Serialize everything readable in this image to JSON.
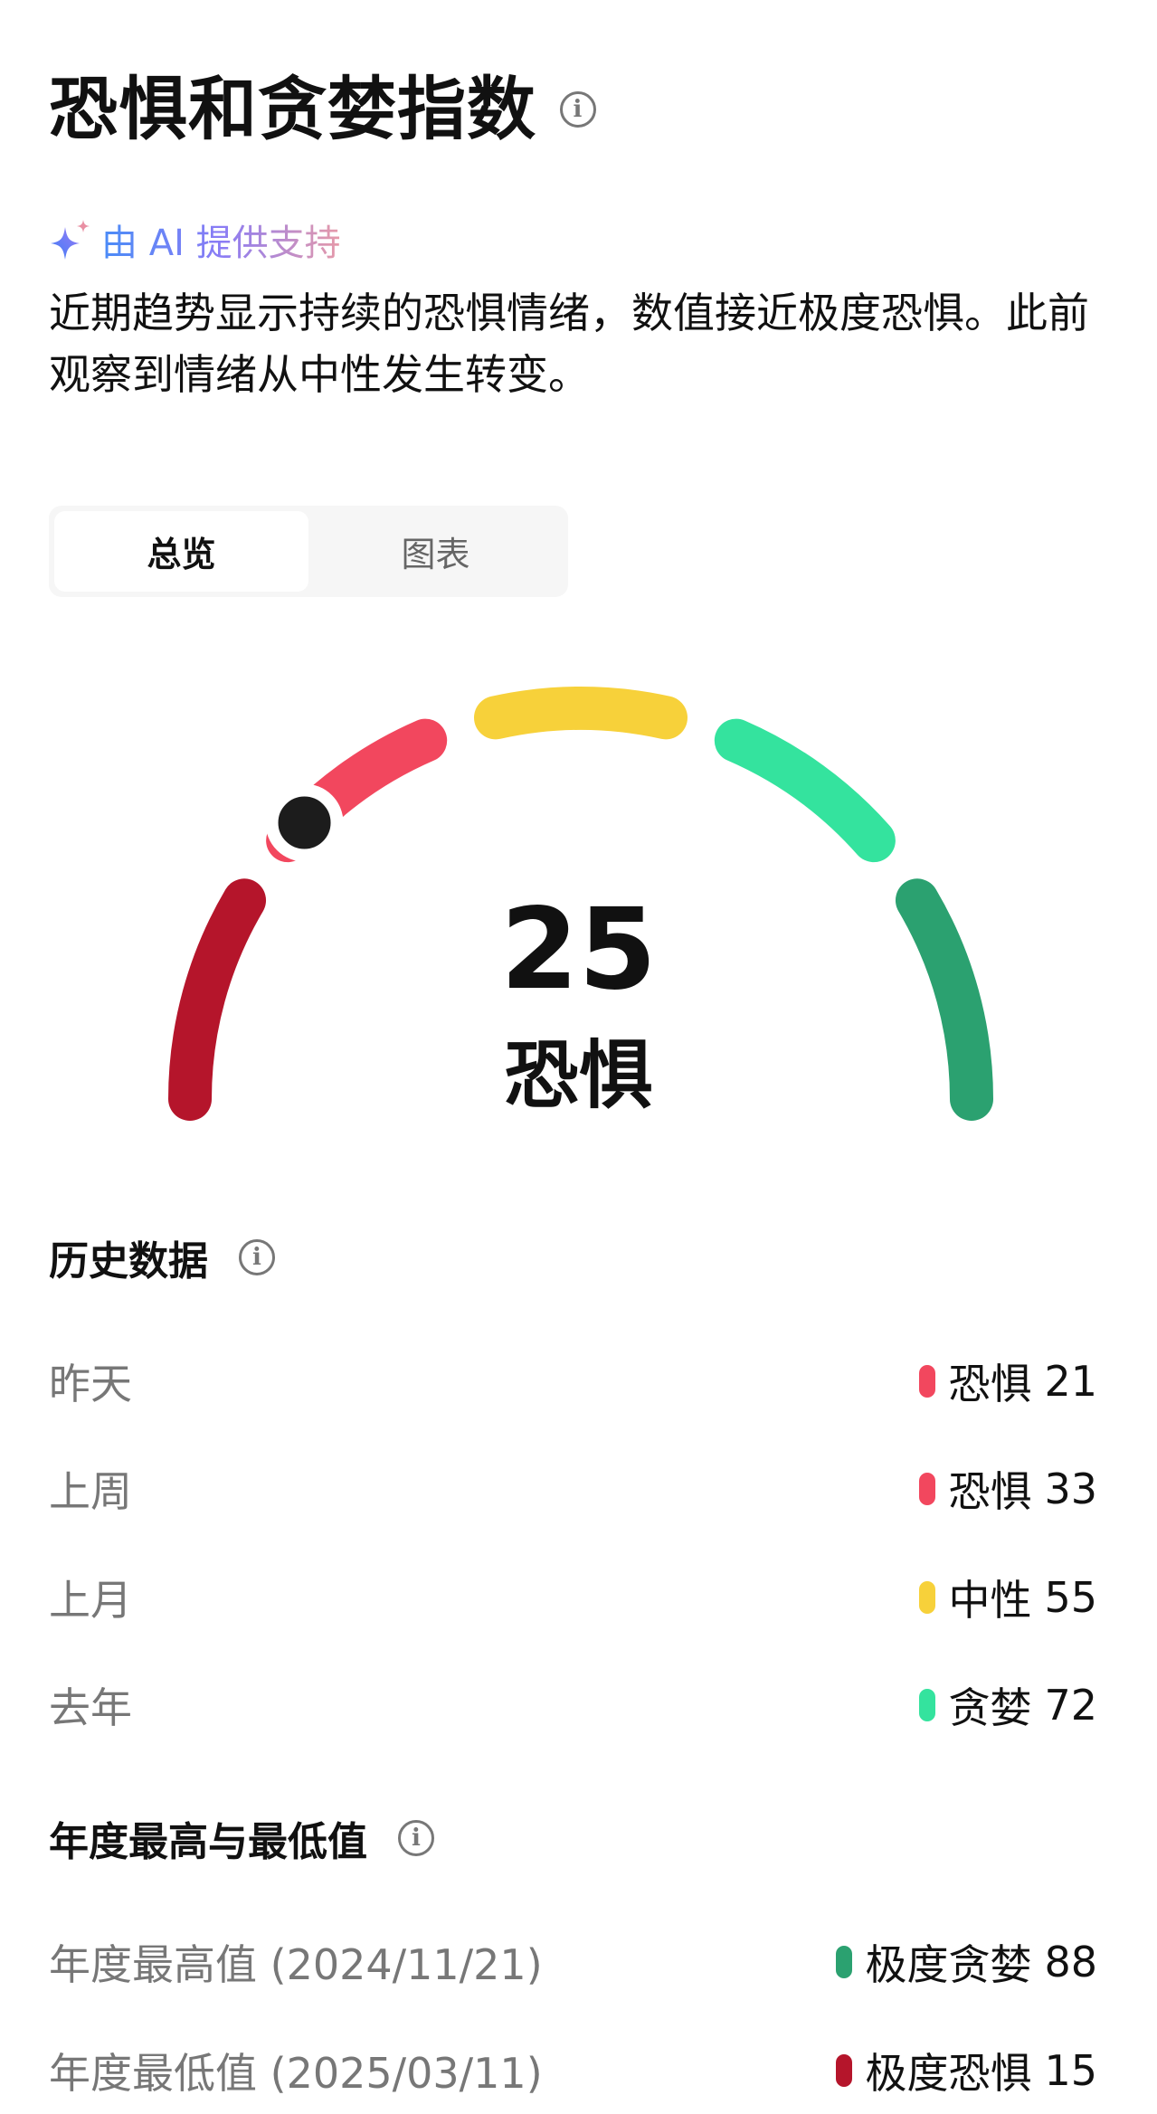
{
  "header": {
    "title": "恐惧和贪婪指数",
    "info_icon": "info-icon"
  },
  "ai": {
    "icon": "sparkle-icon",
    "label": "由 AI 提供支持"
  },
  "summary": "近期趋势显示持续的恐惧情绪，数值接近极度恐惧。此前观察到情绪从中性发生转变。",
  "tabs": [
    {
      "label": "总览",
      "active": true
    },
    {
      "label": "图表",
      "active": false
    }
  ],
  "chart_data": {
    "type": "gauge",
    "value": 25,
    "value_label": "恐惧",
    "range": [
      0,
      100
    ],
    "segments": [
      {
        "from": 0,
        "to": 20,
        "color": "#B5152B"
      },
      {
        "from": 20,
        "to": 40,
        "color": "#F2475E"
      },
      {
        "from": 40,
        "to": 60,
        "color": "#F7D13A"
      },
      {
        "from": 60,
        "to": 80,
        "color": "#34E39E"
      },
      {
        "from": 80,
        "to": 100,
        "color": "#2BA170"
      }
    ],
    "marker_color": "#1C1C1C"
  },
  "history": {
    "title": "历史数据",
    "rows": [
      {
        "label": "昨天",
        "status": "恐惧",
        "value": "21",
        "color": "#F2475E"
      },
      {
        "label": "上周",
        "status": "恐惧",
        "value": "33",
        "color": "#F2475E"
      },
      {
        "label": "上月",
        "status": "中性",
        "value": "55",
        "color": "#F7D13A"
      },
      {
        "label": "去年",
        "status": "贪婪",
        "value": "72",
        "color": "#34E39E"
      }
    ]
  },
  "yearly": {
    "title": "年度最高与最低值",
    "rows": [
      {
        "label": "年度最高值 (2024/11/21)",
        "status": "极度贪婪",
        "value": "88",
        "color": "#2BA170"
      },
      {
        "label": "年度最低值 (2025/03/11)",
        "status": "极度恐惧",
        "value": "15",
        "color": "#B5152B"
      }
    ]
  }
}
